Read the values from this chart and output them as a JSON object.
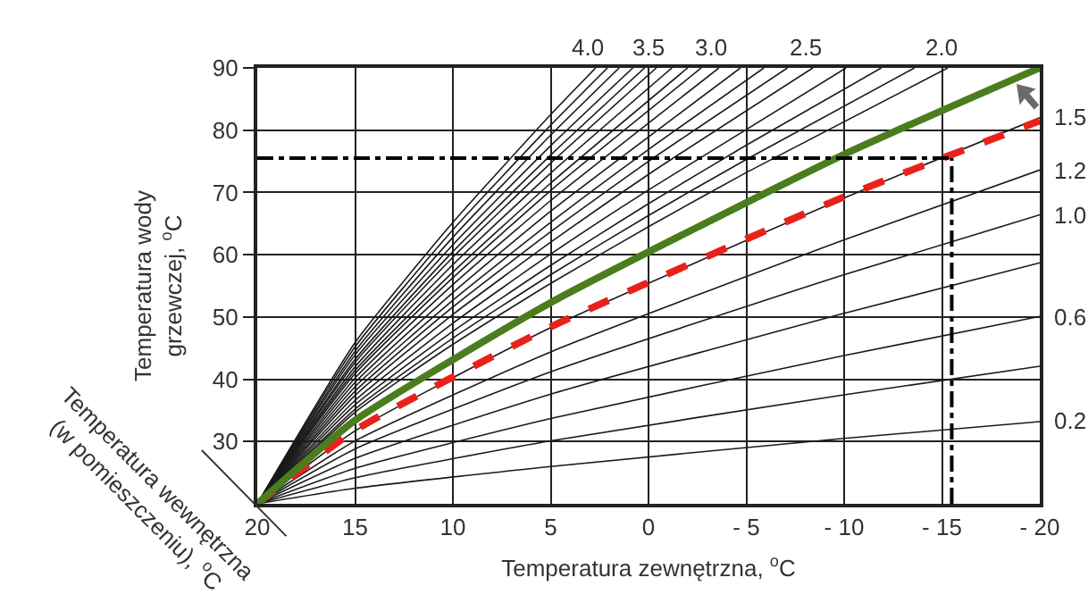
{
  "chart_data": {
    "type": "line",
    "xlabel": "Temperatura zewnętrzna, $^{o}$C",
    "ylabel": "Temperatura wody\ngrzewczej, $^{o}$C",
    "xlim": [
      20,
      -20
    ],
    "xticks": [
      20,
      15,
      10,
      5,
      0,
      {
        "value": -5,
        "label": "- 5"
      },
      {
        "value": -10,
        "label": "- 10"
      },
      {
        "value": -15,
        "label": "- 15"
      },
      {
        "value": -20,
        "label": "- 20"
      }
    ],
    "ylim": [
      20,
      90
    ],
    "yticks": [
      30,
      40,
      50,
      60,
      70,
      80,
      90
    ],
    "grid": true,
    "marker": "none",
    "series": [
      {
        "color": "#1a1a1a",
        "x": [
          20,
          15,
          5,
          -10,
          -20
        ],
        "values": [
          20,
          22.5,
          26.0,
          30.5,
          33.2
        ]
      },
      {
        "color": "#1a1a1a",
        "x": [
          20,
          15,
          5,
          -10,
          -20
        ],
        "values": [
          20,
          24.2,
          30.1,
          37.5,
          42.1
        ]
      },
      {
        "color": "#1a1a1a",
        "x": [
          20,
          15,
          5,
          -10,
          -20
        ],
        "values": [
          20,
          25.7,
          33.7,
          43.8,
          50.1
        ]
      },
      {
        "color": "#1a1a1a",
        "x": [
          20,
          15,
          5,
          -10,
          -20
        ],
        "values": [
          20,
          27.3,
          37.6,
          50.6,
          58.7
        ]
      },
      {
        "color": "#1a1a1a",
        "x": [
          20,
          15,
          5,
          -10,
          -20
        ],
        "values": [
          20,
          28.8,
          41.2,
          56.8,
          66.4
        ]
      },
      {
        "color": "#1a1a1a",
        "x": [
          20,
          15,
          5,
          -10,
          -20
        ],
        "values": [
          20,
          30.1,
          44.4,
          62.4,
          73.6
        ]
      },
      {
        "color": "#1a1a1a",
        "x": [
          20,
          15,
          5,
          -10,
          -20
        ],
        "values": [
          20,
          31.7,
          48.3,
          69.1,
          82.0
        ]
      },
      {
        "color": "#1a1a1a",
        "x": [
          20,
          15,
          10,
          5,
          2.7
        ],
        "values": [
          20,
          45.9,
          65.2,
          82.5,
          90
        ]
      },
      {
        "color": "#1a1a1a",
        "x": [
          20,
          15,
          10,
          5,
          2.1
        ],
        "values": [
          20,
          45.2,
          64.0,
          80.8,
          90
        ]
      },
      {
        "color": "#1a1a1a",
        "x": [
          20,
          15,
          10,
          5,
          1.5
        ],
        "values": [
          20,
          44.5,
          62.8,
          79.2,
          90
        ]
      },
      {
        "color": "#1a1a1a",
        "x": [
          20,
          15,
          10,
          5,
          0.8
        ],
        "values": [
          20,
          43.9,
          61.6,
          77.5,
          90
        ]
      },
      {
        "color": "#1a1a1a",
        "x": [
          20,
          15,
          10,
          5,
          0.2
        ],
        "values": [
          20,
          43.2,
          60.5,
          76.0,
          90
        ]
      },
      {
        "color": "#1a1a1a",
        "x": [
          20,
          15,
          10,
          5,
          -0.4
        ],
        "values": [
          20,
          42.7,
          59.6,
          74.7,
          90
        ]
      },
      {
        "color": "#1a1a1a",
        "x": [
          20,
          15,
          10,
          5,
          -1.2
        ],
        "values": [
          20,
          42.0,
          58.4,
          73.1,
          90
        ]
      },
      {
        "color": "#1a1a1a",
        "x": [
          20,
          15,
          10,
          5,
          -2.0
        ],
        "values": [
          20,
          41.4,
          57.2,
          71.5,
          90
        ]
      },
      {
        "color": "#1a1a1a",
        "x": [
          20,
          15,
          10,
          5,
          -2.7
        ],
        "values": [
          20,
          40.9,
          56.3,
          70.3,
          90
        ]
      },
      {
        "color": "#1a1a1a",
        "x": [
          20,
          15,
          10,
          5,
          -3.6
        ],
        "values": [
          20,
          40.2,
          55.2,
          68.7,
          90
        ]
      },
      {
        "color": "#1a1a1a",
        "x": [
          20,
          15,
          10,
          5,
          -4.7
        ],
        "values": [
          20,
          39.5,
          53.9,
          67.0,
          90
        ]
      },
      {
        "color": "#1a1a1a",
        "x": [
          20,
          15,
          10,
          5,
          0,
          -5.9
        ],
        "values": [
          20,
          38.8,
          52.7,
          65.2,
          76.9,
          90
        ]
      },
      {
        "color": "#1a1a1a",
        "x": [
          20,
          15,
          10,
          5,
          0,
          -7.1
        ],
        "values": [
          20,
          38.1,
          51.6,
          63.7,
          75.0,
          90
        ]
      },
      {
        "color": "#1a1a1a",
        "x": [
          20,
          15,
          10,
          5,
          0,
          -8.4
        ],
        "values": [
          20,
          37.4,
          50.4,
          62.0,
          72.9,
          90
        ]
      },
      {
        "color": "#1a1a1a",
        "x": [
          20,
          15,
          10,
          5,
          0,
          -10.1
        ],
        "values": [
          20,
          36.6,
          49.0,
          60.1,
          70.4,
          90
        ]
      },
      {
        "color": "#1a1a1a",
        "x": [
          20,
          15,
          10,
          5,
          0,
          -5,
          -11.9
        ],
        "values": [
          20,
          35.9,
          47.7,
          58.3,
          68.2,
          77.6,
          90
        ]
      },
      {
        "color": "#1a1a1a",
        "x": [
          20,
          15,
          10,
          5,
          0,
          -5,
          -13.6
        ],
        "values": [
          20,
          35.2,
          46.6,
          56.8,
          66.3,
          75.3,
          90
        ]
      },
      {
        "color": "#1a1a1a",
        "x": [
          20,
          15,
          10,
          5,
          0,
          -5,
          -15.3
        ],
        "values": [
          20,
          34.7,
          45.6,
          55.4,
          64.5,
          73.2,
          90
        ]
      },
      {
        "color": "#e8221b",
        "line_style": "dashed",
        "x": [
          20,
          15,
          5,
          -10,
          -20
        ],
        "values": [
          20,
          31.8,
          48.4,
          69.3,
          81.5
        ]
      },
      {
        "color": "#4b7d1e",
        "line_style": "solid",
        "x": [
          20,
          15,
          5,
          -10,
          -20
        ],
        "values": [
          20,
          33.4,
          52.3,
          76.1,
          90
        ]
      }
    ],
    "ref_lines": [
      {
        "axis": "y",
        "value": 75.5,
        "color": "#000000",
        "line_style": "dashdot"
      },
      {
        "axis": "x",
        "value": -15.5,
        "color": "#000000",
        "line_style": "dashdot"
      }
    ],
    "annotations": [
      "Temperatura wewnętrzna\n(w pomieszczeniu), $^{o}$C",
      {
        "text": "4.0",
        "x": 2.7,
        "y": 90
      },
      {
        "text": "3.5",
        "x": -0.4,
        "y": 90
      },
      {
        "text": "3.0",
        "x": -3.6,
        "y": 90
      },
      {
        "text": "2.5",
        "x": -8.4,
        "y": 90
      },
      {
        "text": "2.0",
        "x": -15.3,
        "y": 90
      },
      {
        "text": "1.5",
        "x": -20,
        "y": 82.0
      },
      {
        "text": "1.2",
        "x": -20,
        "y": 73.6
      },
      {
        "text": "1.0",
        "x": -20,
        "y": 66.4
      },
      {
        "text": "0.6",
        "x": -20,
        "y": 50.1
      },
      {
        "text": "0.2",
        "x": -20,
        "y": 33.2
      }
    ]
  }
}
